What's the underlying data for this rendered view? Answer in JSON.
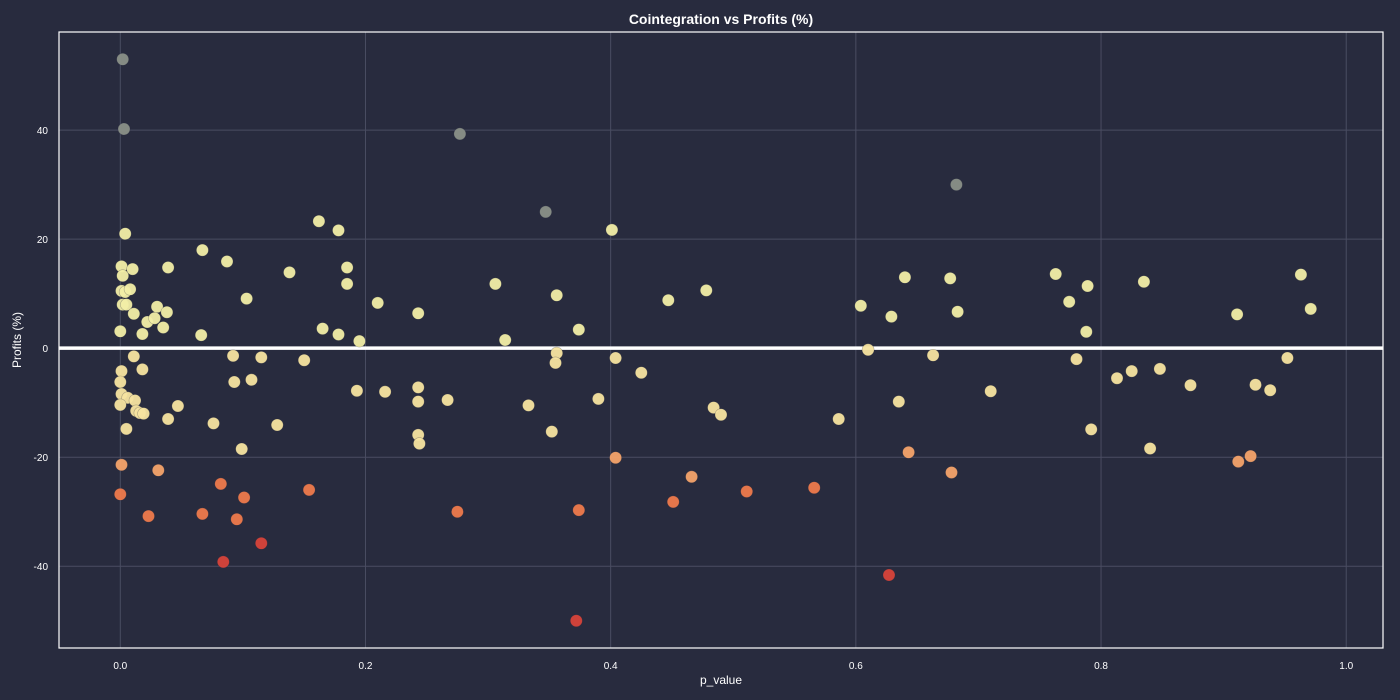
{
  "colors": {
    "background": "#282b3e",
    "frame": "#ffffff",
    "grid": "#4a4d62",
    "zero_line": "#ffffff",
    "point_high": "#8a9088",
    "point_pos": "#f2eea6",
    "point_neg_light": "#f7e4a0",
    "point_neg_mid": "#f4a36a",
    "point_neg_strong": "#ee7a4c",
    "point_neg_max": "#d7433a"
  },
  "chart_data": {
    "type": "scatter",
    "title": "Cointegration vs Profits (%)",
    "xlabel": "p_value",
    "ylabel": "Profits (%)",
    "xlim": [
      -0.05,
      1.03
    ],
    "ylim": [
      -55,
      58
    ],
    "xticks": [
      "0.0",
      "0.2",
      "0.4",
      "0.6",
      "0.8",
      "1.0"
    ],
    "yticks": [
      "-40",
      "-20",
      "0",
      "20",
      "40"
    ],
    "xtick_values": [
      0.0,
      0.2,
      0.4,
      0.6,
      0.8,
      1.0
    ],
    "ytick_values": [
      -40,
      -20,
      0,
      20,
      40
    ],
    "grid": true,
    "reference_line_y": 0,
    "points": [
      [
        0.002,
        53
      ],
      [
        0.003,
        40.2
      ],
      [
        0.004,
        21
      ],
      [
        0.001,
        15
      ],
      [
        0.002,
        13.3
      ],
      [
        0.001,
        10.5
      ],
      [
        0.004,
        10.3
      ],
      [
        0.002,
        8
      ],
      [
        0.005,
        8
      ],
      [
        0.008,
        10.8
      ],
      [
        0.01,
        14.5
      ],
      [
        0.011,
        6.3
      ],
      [
        0.0,
        3.1
      ],
      [
        0.018,
        2.6
      ],
      [
        0.022,
        4.8
      ],
      [
        0.028,
        5.5
      ],
      [
        0.03,
        7.6
      ],
      [
        0.035,
        3.8
      ],
      [
        0.038,
        6.6
      ],
      [
        0.039,
        14.8
      ],
      [
        0.067,
        18
      ],
      [
        0.066,
        2.4
      ],
      [
        0.087,
        15.9
      ],
      [
        0.103,
        9.1
      ],
      [
        0.138,
        13.9
      ],
      [
        0.162,
        23.3
      ],
      [
        0.165,
        3.6
      ],
      [
        0.178,
        21.6
      ],
      [
        0.178,
        2.5
      ],
      [
        0.185,
        14.8
      ],
      [
        0.185,
        11.8
      ],
      [
        0.195,
        1.3
      ],
      [
        0.21,
        8.3
      ],
      [
        0.243,
        6.4
      ],
      [
        0.277,
        39.3
      ],
      [
        0.306,
        11.8
      ],
      [
        0.314,
        1.5
      ],
      [
        0.347,
        25
      ],
      [
        0.356,
        9.7
      ],
      [
        0.374,
        3.4
      ],
      [
        0.401,
        21.7
      ],
      [
        0.447,
        8.8
      ],
      [
        0.478,
        10.6
      ],
      [
        0.604,
        7.8
      ],
      [
        0.629,
        5.8
      ],
      [
        0.64,
        13
      ],
      [
        0.677,
        12.8
      ],
      [
        0.682,
        30
      ],
      [
        0.683,
        6.7
      ],
      [
        0.763,
        13.6
      ],
      [
        0.774,
        8.5
      ],
      [
        0.788,
        3
      ],
      [
        0.789,
        11.4
      ],
      [
        0.835,
        12.2
      ],
      [
        0.911,
        6.2
      ],
      [
        0.963,
        13.5
      ],
      [
        0.971,
        7.2
      ],
      [
        0.001,
        -4.2
      ],
      [
        0.0,
        -6.2
      ],
      [
        0.001,
        -8.4
      ],
      [
        0.006,
        -9.1
      ],
      [
        0.0,
        -10.4
      ],
      [
        0.011,
        -1.5
      ],
      [
        0.012,
        -9.6
      ],
      [
        0.013,
        -11.5
      ],
      [
        0.016,
        -11.9
      ],
      [
        0.019,
        -12
      ],
      [
        0.018,
        -3.9
      ],
      [
        0.005,
        -14.8
      ],
      [
        0.039,
        -13
      ],
      [
        0.047,
        -10.6
      ],
      [
        0.076,
        -13.8
      ],
      [
        0.092,
        -1.4
      ],
      [
        0.093,
        -6.2
      ],
      [
        0.107,
        -5.8
      ],
      [
        0.115,
        -1.7
      ],
      [
        0.099,
        -18.5
      ],
      [
        0.128,
        -14.1
      ],
      [
        0.15,
        -2.2
      ],
      [
        0.193,
        -7.8
      ],
      [
        0.216,
        -8
      ],
      [
        0.243,
        -7.2
      ],
      [
        0.243,
        -9.8
      ],
      [
        0.267,
        -9.5
      ],
      [
        0.243,
        -15.9
      ],
      [
        0.244,
        -17.5
      ],
      [
        0.333,
        -10.5
      ],
      [
        0.352,
        -15.3
      ],
      [
        0.356,
        -0.9
      ],
      [
        0.355,
        -2.7
      ],
      [
        0.39,
        -9.3
      ],
      [
        0.404,
        -1.8
      ],
      [
        0.425,
        -4.5
      ],
      [
        0.484,
        -10.9
      ],
      [
        0.49,
        -12.2
      ],
      [
        0.586,
        -13
      ],
      [
        0.61,
        -0.3
      ],
      [
        0.635,
        -9.8
      ],
      [
        0.663,
        -1.3
      ],
      [
        0.71,
        -7.9
      ],
      [
        0.78,
        -2
      ],
      [
        0.792,
        -14.9
      ],
      [
        0.813,
        -5.5
      ],
      [
        0.825,
        -4.2
      ],
      [
        0.848,
        -3.8
      ],
      [
        0.873,
        -6.8
      ],
      [
        0.952,
        -1.8
      ],
      [
        0.926,
        -6.7
      ],
      [
        0.938,
        -7.7
      ],
      [
        0.001,
        -21.4
      ],
      [
        0.031,
        -22.4
      ],
      [
        0.404,
        -20.1
      ],
      [
        0.466,
        -23.6
      ],
      [
        0.643,
        -19.1
      ],
      [
        0.678,
        -22.8
      ],
      [
        0.84,
        -18.4
      ],
      [
        0.912,
        -20.8
      ],
      [
        0.922,
        -19.8
      ],
      [
        0.0,
        -26.8
      ],
      [
        0.082,
        -24.9
      ],
      [
        0.101,
        -27.4
      ],
      [
        0.154,
        -26
      ],
      [
        0.451,
        -28.2
      ],
      [
        0.511,
        -26.3
      ],
      [
        0.566,
        -25.6
      ],
      [
        0.023,
        -30.8
      ],
      [
        0.067,
        -30.4
      ],
      [
        0.095,
        -31.4
      ],
      [
        0.275,
        -30
      ],
      [
        0.374,
        -29.7
      ],
      [
        0.115,
        -35.8
      ],
      [
        0.084,
        -39.2
      ],
      [
        0.627,
        -41.6
      ],
      [
        0.372,
        -50
      ]
    ]
  }
}
